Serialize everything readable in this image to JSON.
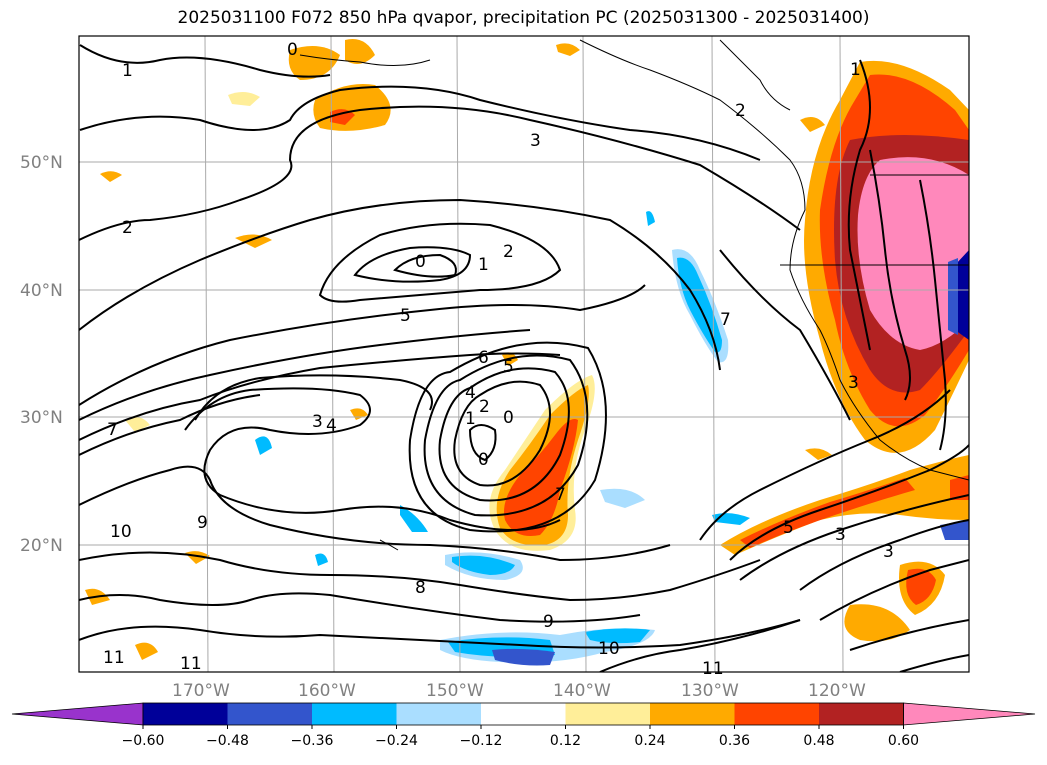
{
  "title": "2025031100 F072 850 hPa qvapor, precipitation PC (2025031300 - 2025031400)",
  "lat_labels": [
    "50°N",
    "40°N",
    "30°N",
    "20°N"
  ],
  "lon_labels": [
    "170°W",
    "160°W",
    "150°W",
    "140°W",
    "130°W",
    "120°W"
  ],
  "colorbar": {
    "ticks": [
      "-0.60",
      "-0.48",
      "-0.36",
      "-0.24",
      "-0.12",
      "0.12",
      "0.24",
      "0.36",
      "0.48",
      "0.60"
    ],
    "colors": [
      "#9933cc",
      "#000099",
      "#3355cc",
      "#00bbff",
      "#aadeff",
      "#ffffff",
      "#ffee99",
      "#ffaa00",
      "#ff4400",
      "#b22222",
      "#ff88bb"
    ]
  },
  "contour_labels": [
    "0",
    "1",
    "2",
    "3",
    "4",
    "5",
    "6",
    "7",
    "8",
    "9",
    "10",
    "11"
  ]
}
